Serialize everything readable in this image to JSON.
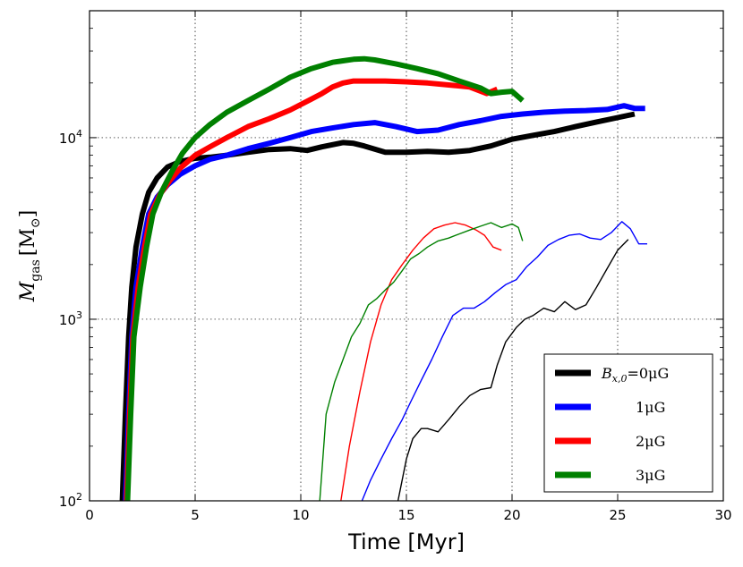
{
  "chart_data": {
    "type": "line",
    "title": "",
    "xlabel": "Time [Myr]",
    "ylabel": "M_gas [M_sun]",
    "ylabel_main": "M",
    "ylabel_sub": "gas",
    "ylabel_unit_open": "[M",
    "ylabel_unit_sun": "⊙",
    "ylabel_unit_close": "]",
    "xlim": [
      0,
      30
    ],
    "ylim": [
      100,
      50000
    ],
    "yscale": "log",
    "grid": true,
    "legend_position": "lower-right",
    "x_ticks": [
      0,
      5,
      10,
      15,
      20,
      25,
      30
    ],
    "x_tick_labels": [
      "0",
      "5",
      "10",
      "15",
      "20",
      "25",
      "30"
    ],
    "y_ticks": [
      100,
      1000,
      10000
    ],
    "y_tick_base": "10",
    "y_tick_exponents": [
      "2",
      "3",
      "4"
    ],
    "series": [
      {
        "name": "B_x,0=0μG",
        "legend_label_main": "B",
        "legend_label_sub": "x,0",
        "legend_label_rest": "=0μG",
        "color": "#000000",
        "thick": {
          "x": [
            1.55,
            1.7,
            1.85,
            2.0,
            2.2,
            2.5,
            2.8,
            3.2,
            3.7,
            4.3,
            5.0,
            5.7,
            6.5,
            7.5,
            8.5,
            9.5,
            10.3,
            11.0,
            12.0,
            12.5,
            13.0,
            14.0,
            15.0,
            16.0,
            17.0,
            18.0,
            19.0,
            20.0,
            21.0,
            22.0,
            23.0,
            24.0,
            25.0,
            25.8
          ],
          "y": [
            100,
            300,
            800,
            1500,
            2500,
            3800,
            5000,
            6000,
            6900,
            7400,
            7700,
            7800,
            8000,
            8300,
            8600,
            8700,
            8500,
            8900,
            9400,
            9300,
            9000,
            8300,
            8300,
            8400,
            8300,
            8500,
            9000,
            9800,
            10300,
            10800,
            11500,
            12200,
            12900,
            13500
          ]
        },
        "thin": {
          "x": [
            14.6,
            15.0,
            15.3,
            15.7,
            16.0,
            16.5,
            17.0,
            17.5,
            18.0,
            18.5,
            19.0,
            19.3,
            19.7,
            20.2,
            20.6,
            21.0,
            21.5,
            22.0,
            22.5,
            23.0,
            23.5,
            24.0,
            24.5,
            25.0,
            25.5
          ],
          "y": [
            100,
            170,
            220,
            250,
            250,
            240,
            280,
            330,
            380,
            410,
            420,
            560,
            750,
            900,
            1000,
            1050,
            1150,
            1100,
            1250,
            1130,
            1200,
            1500,
            1900,
            2400,
            2750
          ]
        }
      },
      {
        "name": "1μG",
        "color": "#0000ff",
        "thick": {
          "x": [
            1.7,
            1.85,
            2.0,
            2.2,
            2.5,
            2.8,
            3.2,
            3.7,
            4.3,
            5.0,
            5.7,
            6.5,
            7.5,
            8.5,
            9.5,
            10.5,
            11.5,
            12.5,
            13.5,
            14.5,
            15.5,
            16.5,
            17.5,
            18.5,
            19.5,
            20.5,
            21.5,
            22.5,
            23.5,
            24.5,
            25.3,
            25.8,
            26.3
          ],
          "y": [
            100,
            300,
            800,
            1500,
            2500,
            3800,
            4700,
            5500,
            6300,
            7000,
            7600,
            8000,
            8700,
            9300,
            10000,
            10800,
            11300,
            11800,
            12100,
            11500,
            10800,
            11000,
            11800,
            12400,
            13100,
            13500,
            13800,
            14000,
            14100,
            14300,
            15000,
            14500,
            14500
          ]
        },
        "thin": {
          "x": [
            12.9,
            13.3,
            13.8,
            14.3,
            14.8,
            15.2,
            15.7,
            16.2,
            16.7,
            17.2,
            17.7,
            18.2,
            18.7,
            19.2,
            19.7,
            20.2,
            20.7,
            21.2,
            21.7,
            22.2,
            22.7,
            23.2,
            23.7,
            24.2,
            24.7,
            25.2,
            25.6,
            26.0,
            26.4
          ],
          "y": [
            100,
            130,
            170,
            220,
            280,
            350,
            460,
            600,
            800,
            1050,
            1150,
            1150,
            1250,
            1400,
            1550,
            1650,
            1950,
            2200,
            2550,
            2750,
            2900,
            2950,
            2800,
            2750,
            3000,
            3450,
            3150,
            2600,
            2600
          ]
        }
      },
      {
        "name": "2μG",
        "color": "#ff0000",
        "thick": {
          "x": [
            1.75,
            1.9,
            2.05,
            2.3,
            2.6,
            2.9,
            3.3,
            3.8,
            4.3,
            5.0,
            5.7,
            6.5,
            7.5,
            8.5,
            9.5,
            10.5,
            11.0,
            11.5,
            12.0,
            12.5,
            13.0,
            14.0,
            15.0,
            16.0,
            17.0,
            18.0,
            18.8,
            19.3
          ],
          "y": [
            100,
            300,
            800,
            1500,
            2500,
            3800,
            4800,
            5800,
            6800,
            8000,
            8900,
            10000,
            11500,
            12700,
            14200,
            16300,
            17500,
            19000,
            20000,
            20500,
            20500,
            20500,
            20300,
            20000,
            19500,
            19000,
            17500,
            18500
          ]
        },
        "thin": {
          "x": [
            11.9,
            12.3,
            12.8,
            13.3,
            13.8,
            14.3,
            14.8,
            15.3,
            15.8,
            16.3,
            16.8,
            17.3,
            17.8,
            18.3,
            18.7,
            19.1,
            19.5
          ],
          "y": [
            100,
            200,
            400,
            750,
            1200,
            1650,
            2000,
            2400,
            2800,
            3150,
            3300,
            3400,
            3300,
            3100,
            2900,
            2500,
            2400
          ]
        }
      },
      {
        "name": "3μG",
        "color": "#008000",
        "thick": {
          "x": [
            1.8,
            1.95,
            2.1,
            2.4,
            2.7,
            3.0,
            3.4,
            3.9,
            4.4,
            5.0,
            5.7,
            6.5,
            7.5,
            8.5,
            9.5,
            10.5,
            11.5,
            12.5,
            13.0,
            13.5,
            14.5,
            15.5,
            16.5,
            17.5,
            18.5,
            19.0,
            19.5,
            20.0,
            20.5
          ],
          "y": [
            100,
            300,
            800,
            1500,
            2500,
            3800,
            5000,
            6500,
            8200,
            10000,
            11800,
            13800,
            16000,
            18500,
            21500,
            24000,
            26000,
            27000,
            27200,
            26800,
            25500,
            24000,
            22500,
            20500,
            18800,
            17500,
            17800,
            18000,
            16000
          ]
        },
        "thin": {
          "x": [
            10.9,
            11.2,
            11.6,
            12.0,
            12.4,
            12.8,
            13.2,
            13.6,
            14.0,
            14.4,
            14.8,
            15.2,
            15.6,
            16.0,
            16.5,
            17.0,
            17.5,
            18.0,
            18.5,
            19.0,
            19.5,
            20.0,
            20.3,
            20.5
          ],
          "y": [
            100,
            300,
            450,
            600,
            800,
            950,
            1200,
            1300,
            1450,
            1600,
            1850,
            2150,
            2300,
            2500,
            2700,
            2800,
            2950,
            3100,
            3250,
            3400,
            3200,
            3350,
            3200,
            2700
          ]
        }
      }
    ]
  }
}
